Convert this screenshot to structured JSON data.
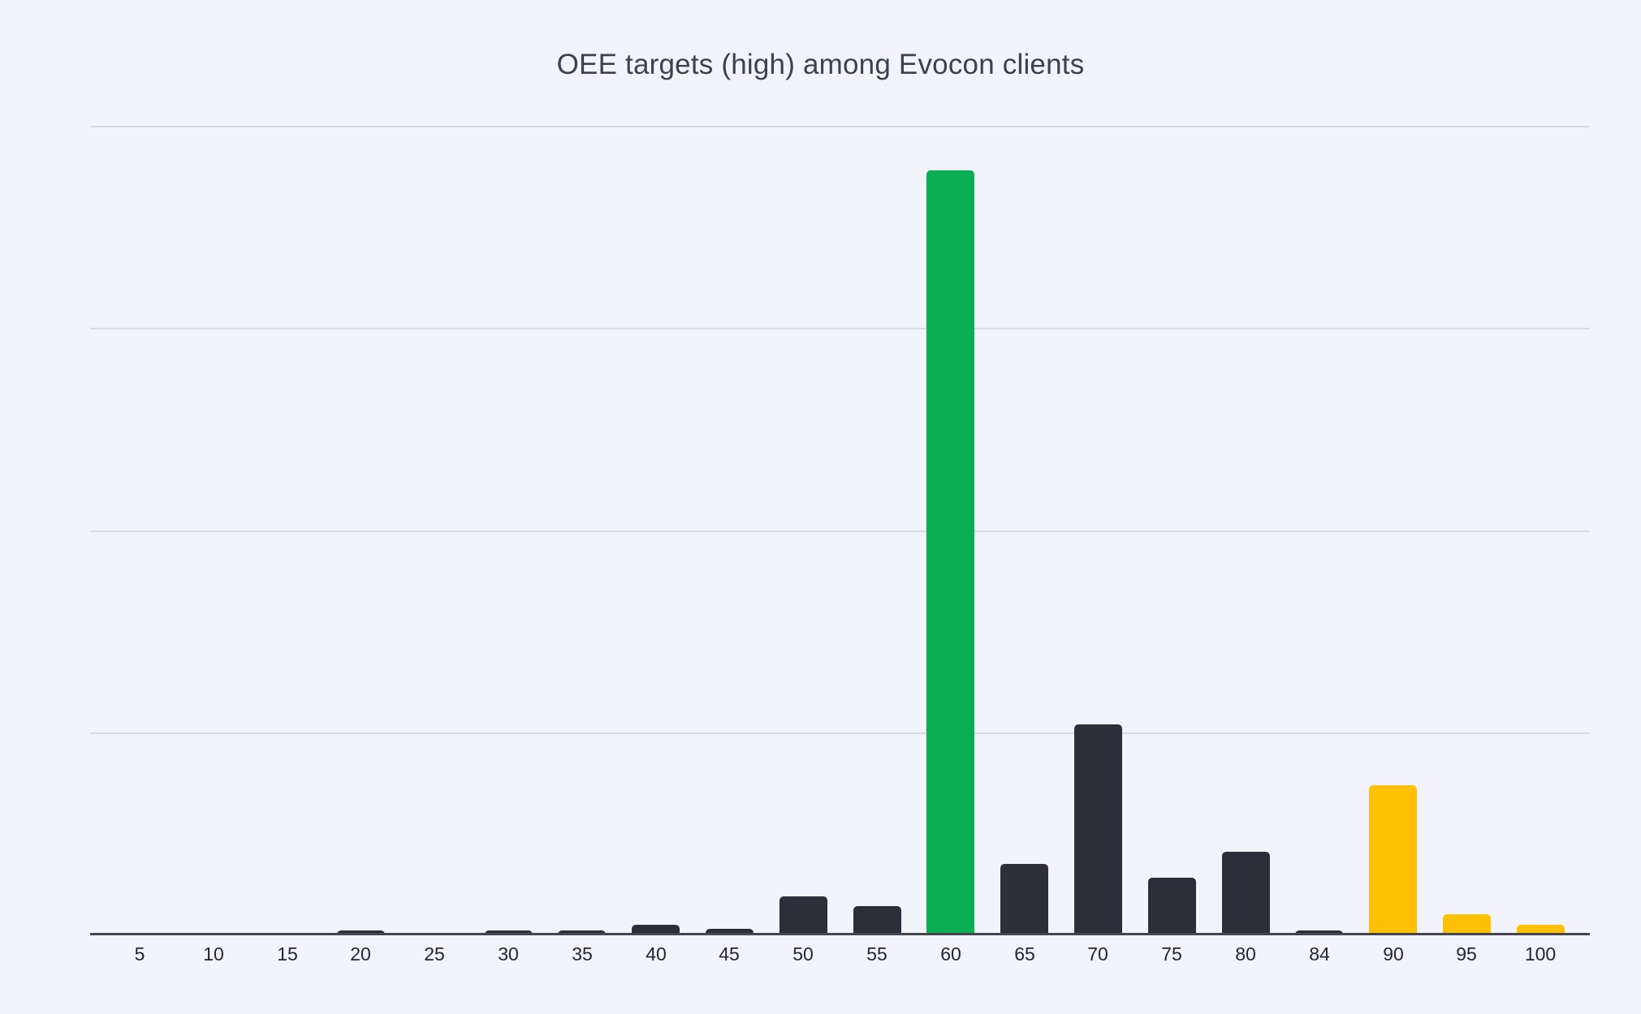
{
  "chart_data": {
    "type": "bar",
    "title": "OEE targets (high) among Evocon clients",
    "xlabel": "",
    "ylabel": "",
    "categories": [
      "5",
      "10",
      "15",
      "20",
      "25",
      "30",
      "35",
      "40",
      "45",
      "50",
      "55",
      "60",
      "65",
      "70",
      "75",
      "80",
      "84",
      "90",
      "95",
      "100"
    ],
    "values": [
      0,
      0,
      0,
      0.02,
      0,
      0.02,
      0.02,
      0.05,
      0.03,
      0.19,
      0.14,
      3.78,
      0.35,
      1.04,
      0.28,
      0.41,
      0.02,
      0.74,
      0.1,
      0.05
    ],
    "bar_color_keys": [
      "default",
      "default",
      "default",
      "default",
      "default",
      "default",
      "default",
      "default",
      "default",
      "default",
      "default",
      "green",
      "default",
      "default",
      "default",
      "default",
      "default",
      "yellow",
      "yellow",
      "yellow"
    ],
    "ylim": [
      0,
      4.14
    ],
    "gridline_values": [
      1,
      2,
      3,
      4
    ],
    "grid": "horizontal",
    "legend_position": "none",
    "y_axis_labels_visible": false
  },
  "colors": {
    "background": "#f3f3fb",
    "default": "#2c2f3a",
    "green": "#0bae52",
    "yellow": "#fdc004",
    "gridline": "#dadae3",
    "axis_line": "#43454f",
    "title_text": "#3d414c",
    "tick_text": "#23262e"
  }
}
